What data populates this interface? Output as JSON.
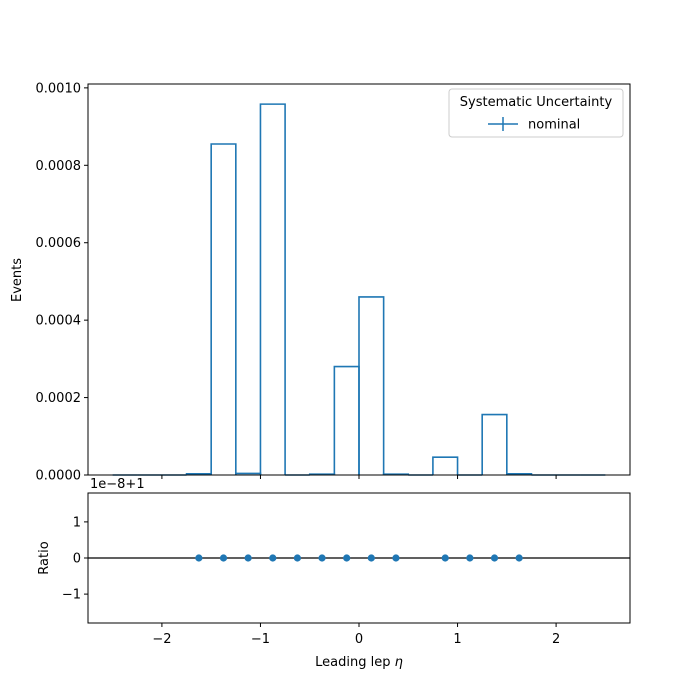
{
  "chart_data": [
    {
      "type": "step-histogram",
      "name": "main",
      "xlim": [
        -2.75,
        2.75
      ],
      "ylim": [
        0,
        0.00101
      ],
      "ylabel": "Events",
      "bin_edges": [
        -2.5,
        -2.25,
        -2.0,
        -1.75,
        -1.5,
        -1.25,
        -1.0,
        -0.75,
        -0.5,
        -0.25,
        0.0,
        0.25,
        0.5,
        0.75,
        1.0,
        1.25,
        1.5,
        1.75,
        2.0,
        2.25,
        2.5
      ],
      "series": [
        {
          "name": "nominal",
          "color": "#1f77b4",
          "values": [
            0,
            0,
            0,
            3e-06,
            0.000855,
            4e-06,
            0.000958,
            0,
            2e-06,
            0.00028,
            0.00046,
            2e-06,
            0,
            4.6e-05,
            0,
            0.000156,
            3e-06,
            0,
            0,
            0
          ]
        }
      ],
      "yticks": [
        {
          "value": 0,
          "label": "0.0000"
        },
        {
          "value": 0.0002,
          "label": "0.0002"
        },
        {
          "value": 0.0004,
          "label": "0.0004"
        },
        {
          "value": 0.0006,
          "label": "0.0006"
        },
        {
          "value": 0.0008,
          "label": "0.0008"
        },
        {
          "value": 0.001,
          "label": "0.0010"
        }
      ],
      "legend": {
        "title": "Systematic Uncertainty",
        "placement": "top-right",
        "entries": [
          "nominal"
        ]
      }
    },
    {
      "type": "scatter",
      "name": "ratio",
      "xlim": [
        -2.75,
        2.75
      ],
      "ylim": [
        -1.8,
        1.8
      ],
      "ylabel": "Ratio",
      "xlabel_text": "Leading lep ",
      "xlabel_symbol": "η",
      "offset_text": "1e−8+1",
      "reference_line": 0,
      "x": [
        -1.625,
        -1.375,
        -1.125,
        -0.875,
        -0.625,
        -0.375,
        -0.125,
        0.125,
        0.375,
        0.875,
        1.125,
        1.375,
        1.625
      ],
      "y": [
        0,
        0,
        0,
        0,
        0,
        0,
        0,
        0,
        0,
        0,
        0,
        0,
        0
      ],
      "color": "#1f77b4",
      "yticks": [
        {
          "value": -1,
          "label": "−1"
        },
        {
          "value": 0,
          "label": "0"
        },
        {
          "value": 1,
          "label": "1"
        }
      ],
      "xticks": [
        {
          "value": -2,
          "label": "−2"
        },
        {
          "value": -1,
          "label": "−1"
        },
        {
          "value": 0,
          "label": "0"
        },
        {
          "value": 1,
          "label": "1"
        },
        {
          "value": 2,
          "label": "2"
        }
      ]
    }
  ]
}
